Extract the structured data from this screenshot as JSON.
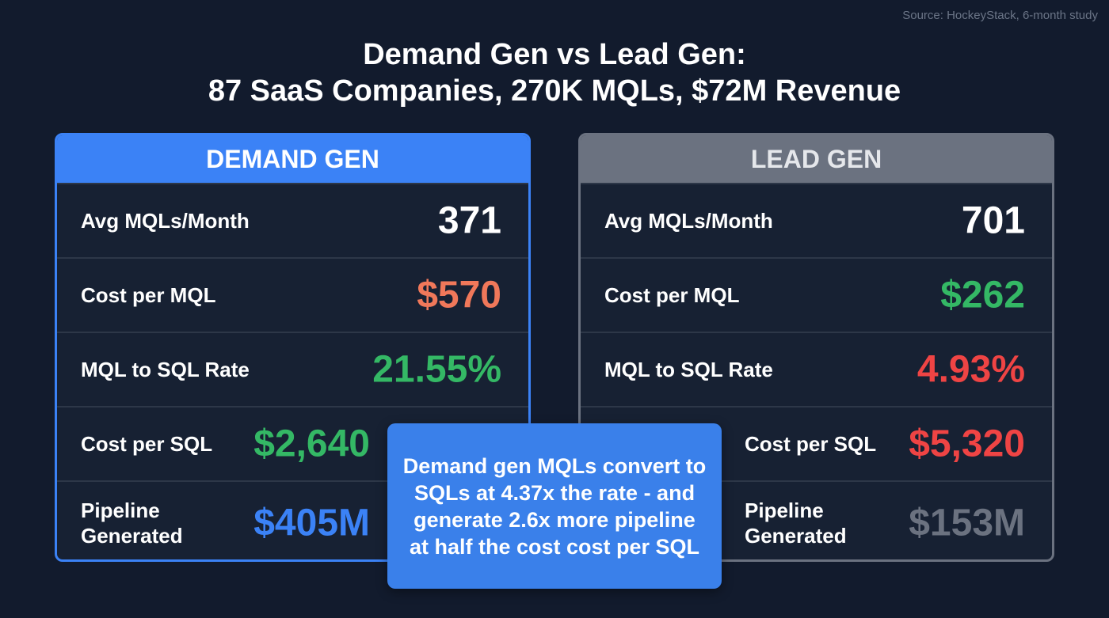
{
  "source": "Source: HockeyStack, 6-month study",
  "title_line1": "Demand Gen vs Lead Gen:",
  "title_line2": "87 SaaS Companies, 270K MQLs,  $72M Revenue",
  "demand": {
    "header": "DEMAND GEN",
    "rows": [
      {
        "label": "Avg MQLs/Month",
        "value": "371",
        "color": "#ffffff"
      },
      {
        "label": "Cost per MQL",
        "value": "$570",
        "color": "#f0785a"
      },
      {
        "label": "MQL to SQL Rate",
        "value": "21.55%",
        "color": "#34b865"
      },
      {
        "label": "Cost per SQL",
        "value": "$2,640",
        "color": "#34b865"
      },
      {
        "label": "Pipeline Generated",
        "value": "$405M",
        "color": "#3b82f6"
      }
    ]
  },
  "lead": {
    "header": "LEAD GEN",
    "rows": [
      {
        "label": "Avg MQLs/Month",
        "value": "701",
        "color": "#ffffff"
      },
      {
        "label": "Cost per MQL",
        "value": "$262",
        "color": "#34b865"
      },
      {
        "label": "MQL to SQL Rate",
        "value": "4.93%",
        "color": "#ef4444"
      },
      {
        "label": "Cost per SQL",
        "value": "$5,320",
        "color": "#ef4444"
      },
      {
        "label": "Pipeline Generated",
        "value": "$153M",
        "color": "#6b7280"
      }
    ]
  },
  "callout": "Demand gen MQLs convert to SQLs at 4.37x the rate - and generate 2.6x more pipeline at half the cost cost per SQL"
}
